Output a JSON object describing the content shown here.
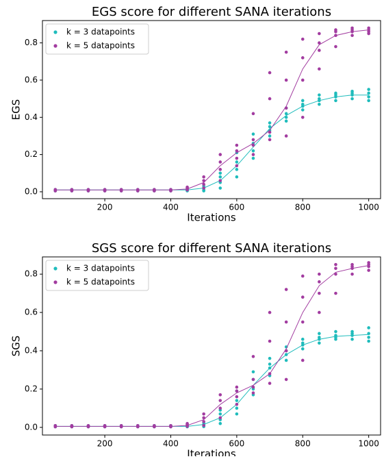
{
  "chart_data": [
    {
      "type": "scatter",
      "title": "EGS score for different SANA iterations",
      "xlabel": "Iterations",
      "ylabel": "EGS",
      "legend": "upper left",
      "x": [
        50,
        100,
        150,
        200,
        250,
        300,
        350,
        400,
        450,
        500,
        550,
        600,
        650,
        700,
        750,
        800,
        850,
        900,
        950,
        1000
      ],
      "xlim": [
        11,
        1036
      ],
      "xticks": [
        200,
        400,
        600,
        800,
        1000
      ],
      "ylim": [
        -0.037,
        0.92
      ],
      "yticks": [
        {
          "value": 0,
          "label": "0.0"
        },
        0.2,
        0.4,
        0.6,
        0.8
      ],
      "series": [
        {
          "name": "k = 3 datapoints",
          "color": "#1fbcbc",
          "values": [
            [
              0.005,
              0.008,
              0.01,
              0.012
            ],
            [
              0.005,
              0.008,
              0.01,
              0.012
            ],
            [
              0.005,
              0.008,
              0.01,
              0.012
            ],
            [
              0.005,
              0.008,
              0.01,
              0.012
            ],
            [
              0.005,
              0.008,
              0.01,
              0.012
            ],
            [
              0.005,
              0.008,
              0.01,
              0.012
            ],
            [
              0.005,
              0.008,
              0.01,
              0.012
            ],
            [
              0.005,
              0.008,
              0.01,
              0.012
            ],
            [
              0.005,
              0.008,
              0.01,
              0.012
            ],
            [
              0.005,
              0.01,
              0.02,
              0.03
            ],
            [
              0.02,
              0.05,
              0.08,
              0.1
            ],
            [
              0.08,
              0.12,
              0.16,
              0.21
            ],
            [
              0.18,
              0.22,
              0.26,
              0.31
            ],
            [
              0.3,
              0.33,
              0.35,
              0.37
            ],
            [
              0.38,
              0.4,
              0.42,
              0.45
            ],
            [
              0.44,
              0.46,
              0.47,
              0.49
            ],
            [
              0.47,
              0.49,
              0.5,
              0.52
            ],
            [
              0.49,
              0.51,
              0.52,
              0.53
            ],
            [
              0.5,
              0.52,
              0.53,
              0.54
            ],
            [
              0.49,
              0.51,
              0.53,
              0.55
            ]
          ],
          "fit": [
            0.01,
            0.01,
            0.01,
            0.01,
            0.01,
            0.01,
            0.01,
            0.01,
            0.01,
            0.02,
            0.06,
            0.14,
            0.24,
            0.34,
            0.41,
            0.46,
            0.49,
            0.51,
            0.52,
            0.52
          ]
        },
        {
          "name": "k = 5 datapoints",
          "color": "#a23ca0",
          "values": [
            [
              0.005,
              0.008,
              0.01,
              0.012
            ],
            [
              0.005,
              0.008,
              0.01,
              0.012
            ],
            [
              0.005,
              0.008,
              0.01,
              0.012
            ],
            [
              0.005,
              0.008,
              0.01,
              0.012
            ],
            [
              0.005,
              0.008,
              0.01,
              0.012
            ],
            [
              0.005,
              0.008,
              0.01,
              0.012
            ],
            [
              0.005,
              0.008,
              0.01,
              0.012
            ],
            [
              0.005,
              0.008,
              0.01,
              0.012
            ],
            [
              0.01,
              0.015,
              0.02,
              0.025
            ],
            [
              0.02,
              0.04,
              0.06,
              0.08
            ],
            [
              0.06,
              0.12,
              0.16,
              0.2
            ],
            [
              0.14,
              0.18,
              0.22,
              0.25
            ],
            [
              0.2,
              0.25,
              0.28,
              0.42
            ],
            [
              0.28,
              0.32,
              0.5,
              0.64
            ],
            [
              0.3,
              0.45,
              0.6,
              0.75
            ],
            [
              0.4,
              0.6,
              0.72,
              0.82
            ],
            [
              0.66,
              0.76,
              0.8,
              0.85
            ],
            [
              0.78,
              0.84,
              0.86,
              0.87
            ],
            [
              0.84,
              0.86,
              0.87,
              0.88
            ],
            [
              0.85,
              0.86,
              0.87,
              0.88
            ]
          ],
          "fit": [
            0.01,
            0.01,
            0.01,
            0.01,
            0.01,
            0.01,
            0.01,
            0.01,
            0.015,
            0.05,
            0.14,
            0.21,
            0.26,
            0.33,
            0.46,
            0.66,
            0.79,
            0.84,
            0.86,
            0.87
          ]
        }
      ]
    },
    {
      "type": "scatter",
      "title": "SGS score for different SANA iterations",
      "xlabel": "Iterations",
      "ylabel": "SGS",
      "legend": "upper left",
      "x": [
        50,
        100,
        150,
        200,
        250,
        300,
        350,
        400,
        450,
        500,
        550,
        600,
        650,
        700,
        750,
        800,
        850,
        900,
        950,
        1000
      ],
      "xlim": [
        11,
        1036
      ],
      "xticks": [
        200,
        400,
        600,
        800,
        1000
      ],
      "ylim": [
        -0.04,
        0.89
      ],
      "yticks": [
        {
          "value": 0,
          "label": "0.0"
        },
        0.2,
        0.4,
        0.6,
        0.8
      ],
      "series": [
        {
          "name": "k = 3 datapoints",
          "color": "#1fbcbc",
          "values": [
            [
              0.003,
              0.005,
              0.007,
              0.009
            ],
            [
              0.003,
              0.005,
              0.007,
              0.009
            ],
            [
              0.003,
              0.005,
              0.007,
              0.009
            ],
            [
              0.003,
              0.005,
              0.007,
              0.009
            ],
            [
              0.003,
              0.005,
              0.007,
              0.009
            ],
            [
              0.003,
              0.005,
              0.007,
              0.009
            ],
            [
              0.003,
              0.005,
              0.007,
              0.009
            ],
            [
              0.003,
              0.005,
              0.007,
              0.009
            ],
            [
              0.003,
              0.005,
              0.007,
              0.009
            ],
            [
              0.004,
              0.01,
              0.015,
              0.025
            ],
            [
              0.02,
              0.04,
              0.07,
              0.09
            ],
            [
              0.07,
              0.1,
              0.14,
              0.19
            ],
            [
              0.17,
              0.2,
              0.25,
              0.29
            ],
            [
              0.27,
              0.31,
              0.33,
              0.36
            ],
            [
              0.35,
              0.38,
              0.4,
              0.42
            ],
            [
              0.41,
              0.43,
              0.44,
              0.46
            ],
            [
              0.44,
              0.46,
              0.47,
              0.49
            ],
            [
              0.46,
              0.47,
              0.48,
              0.5
            ],
            [
              0.46,
              0.48,
              0.49,
              0.5
            ],
            [
              0.45,
              0.47,
              0.49,
              0.52
            ]
          ],
          "fit": [
            0.005,
            0.005,
            0.005,
            0.005,
            0.005,
            0.005,
            0.005,
            0.005,
            0.005,
            0.015,
            0.05,
            0.12,
            0.22,
            0.31,
            0.38,
            0.43,
            0.46,
            0.475,
            0.48,
            0.485
          ]
        },
        {
          "name": "k = 5 datapoints",
          "color": "#a23ca0",
          "values": [
            [
              0.003,
              0.005,
              0.007,
              0.009
            ],
            [
              0.003,
              0.005,
              0.007,
              0.009
            ],
            [
              0.003,
              0.005,
              0.007,
              0.009
            ],
            [
              0.003,
              0.005,
              0.007,
              0.009
            ],
            [
              0.003,
              0.005,
              0.007,
              0.009
            ],
            [
              0.003,
              0.005,
              0.007,
              0.009
            ],
            [
              0.003,
              0.005,
              0.007,
              0.009
            ],
            [
              0.003,
              0.005,
              0.007,
              0.009
            ],
            [
              0.005,
              0.01,
              0.015,
              0.02
            ],
            [
              0.01,
              0.03,
              0.05,
              0.07
            ],
            [
              0.05,
              0.1,
              0.14,
              0.17
            ],
            [
              0.12,
              0.16,
              0.19,
              0.21
            ],
            [
              0.18,
              0.21,
              0.25,
              0.37
            ],
            [
              0.23,
              0.28,
              0.45,
              0.6
            ],
            [
              0.25,
              0.4,
              0.55,
              0.72
            ],
            [
              0.35,
              0.55,
              0.68,
              0.79
            ],
            [
              0.6,
              0.7,
              0.76,
              0.8
            ],
            [
              0.7,
              0.8,
              0.83,
              0.85
            ],
            [
              0.8,
              0.83,
              0.84,
              0.85
            ],
            [
              0.82,
              0.84,
              0.85,
              0.86
            ]
          ],
          "fit": [
            0.005,
            0.005,
            0.005,
            0.005,
            0.005,
            0.005,
            0.005,
            0.005,
            0.01,
            0.04,
            0.12,
            0.18,
            0.22,
            0.28,
            0.41,
            0.6,
            0.74,
            0.81,
            0.83,
            0.845
          ]
        }
      ]
    }
  ]
}
